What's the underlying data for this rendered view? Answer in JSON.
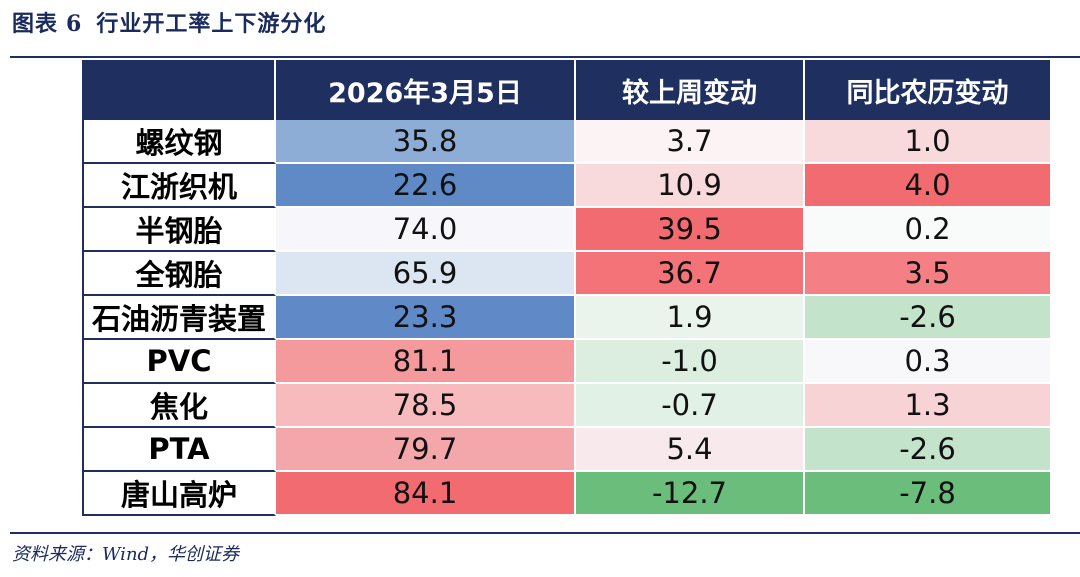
{
  "header": {
    "fig_label": "图表",
    "fig_num": "6",
    "title": "行业开工率上下游分化"
  },
  "columns": [
    "",
    "2026年3月5日",
    "较上周变动",
    "同比农历变动"
  ],
  "rows": [
    {
      "label": "螺纹钢",
      "value": "35.8",
      "wow": "3.7",
      "yoy": "1.0",
      "bg": [
        "#8eadd6",
        "#fbf3f4",
        "#f8dadd"
      ]
    },
    {
      "label": "江浙织机",
      "value": "22.6",
      "wow": "10.9",
      "yoy": "4.0",
      "bg": [
        "#5f8ac6",
        "#f8dadd",
        "#f26b70"
      ]
    },
    {
      "label": "半钢胎",
      "value": "74.0",
      "wow": "39.5",
      "yoy": "0.2",
      "bg": [
        "#f7f7fb",
        "#f26b70",
        "#f9fbfa"
      ]
    },
    {
      "label": "全钢胎",
      "value": "65.9",
      "wow": "36.7",
      "yoy": "3.5",
      "bg": [
        "#dce5f2",
        "#f37379",
        "#f48086"
      ]
    },
    {
      "label": "石油沥青装置",
      "value": "23.3",
      "wow": "1.9",
      "yoy": "-2.6",
      "bg": [
        "#6089c7",
        "#eaf4ec",
        "#c3e4cb"
      ]
    },
    {
      "label": "PVC",
      "value": "81.1",
      "wow": "-1.0",
      "yoy": "0.3",
      "bg": [
        "#f4999c",
        "#dbeee0",
        "#f8f8fa"
      ]
    },
    {
      "label": "焦化",
      "value": "78.5",
      "wow": "-0.7",
      "yoy": "1.3",
      "bg": [
        "#f7babd",
        "#e1f1e5",
        "#f7d3d6"
      ]
    },
    {
      "label": "PTA",
      "value": "79.7",
      "wow": "5.4",
      "yoy": "-2.6",
      "bg": [
        "#f4a7aa",
        "#f8eaec",
        "#c3e4cb"
      ]
    },
    {
      "label": "唐山高炉",
      "value": "84.1",
      "wow": "-12.7",
      "yoy": "-7.8",
      "bg": [
        "#f26b70",
        "#6abd7b",
        "#6abd7b"
      ]
    }
  ],
  "footer": {
    "source": "资料来源：Wind，华创证券"
  }
}
